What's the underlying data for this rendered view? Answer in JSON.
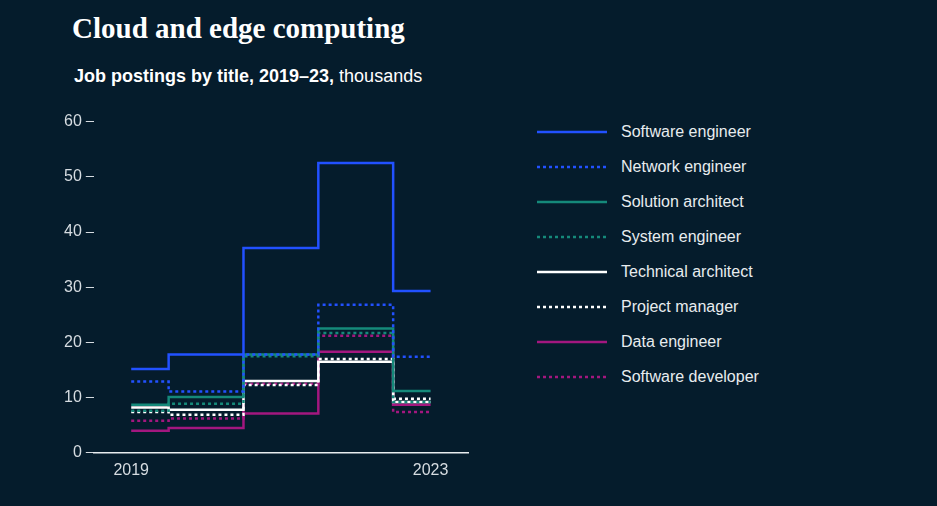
{
  "chart_data": {
    "type": "step",
    "title": "Cloud and edge computing",
    "subtitle": "Job postings by title, 2019–23,",
    "unit_label": "thousands",
    "categories": [
      "2019",
      null,
      null,
      null,
      "2023"
    ],
    "series": [
      {
        "name": "Software engineer",
        "color": "#2251ff",
        "line_style": "solid",
        "values": [
          15.2,
          17.8,
          37.1,
          52.5,
          29.3
        ]
      },
      {
        "name": "Network engineer",
        "color": "#2251ff",
        "line_style": "dotted",
        "values": [
          12.9,
          11.1,
          17.8,
          26.8,
          17.4
        ]
      },
      {
        "name": "Solution architect",
        "color": "#15897a",
        "line_style": "solid",
        "values": [
          8.7,
          10.1,
          17.8,
          22.5,
          11.2
        ]
      },
      {
        "name": "System engineer",
        "color": "#15897a",
        "line_style": "dotted",
        "values": [
          7.6,
          8.9,
          17.5,
          21.7,
          9.2
        ]
      },
      {
        "name": "Technical architect",
        "color": "#ffffff",
        "line_style": "solid",
        "values": [
          8.2,
          7.8,
          13.0,
          16.5,
          9.2
        ]
      },
      {
        "name": "Project manager",
        "color": "#ffffff",
        "line_style": "dotted",
        "values": [
          7.4,
          6.9,
          12.3,
          17.0,
          9.8
        ]
      },
      {
        "name": "Data engineer",
        "color": "#a3177f",
        "line_style": "solid",
        "values": [
          4.0,
          4.5,
          7.1,
          18.3,
          8.7
        ]
      },
      {
        "name": "Software developer",
        "color": "#a3177f",
        "line_style": "dotted",
        "values": [
          5.8,
          6.2,
          12.5,
          21.2,
          7.4
        ]
      }
    ],
    "ylim": [
      0,
      60
    ],
    "yticks": [
      0,
      10,
      20,
      30,
      40,
      50,
      60
    ],
    "grid": false,
    "legend": "right"
  }
}
